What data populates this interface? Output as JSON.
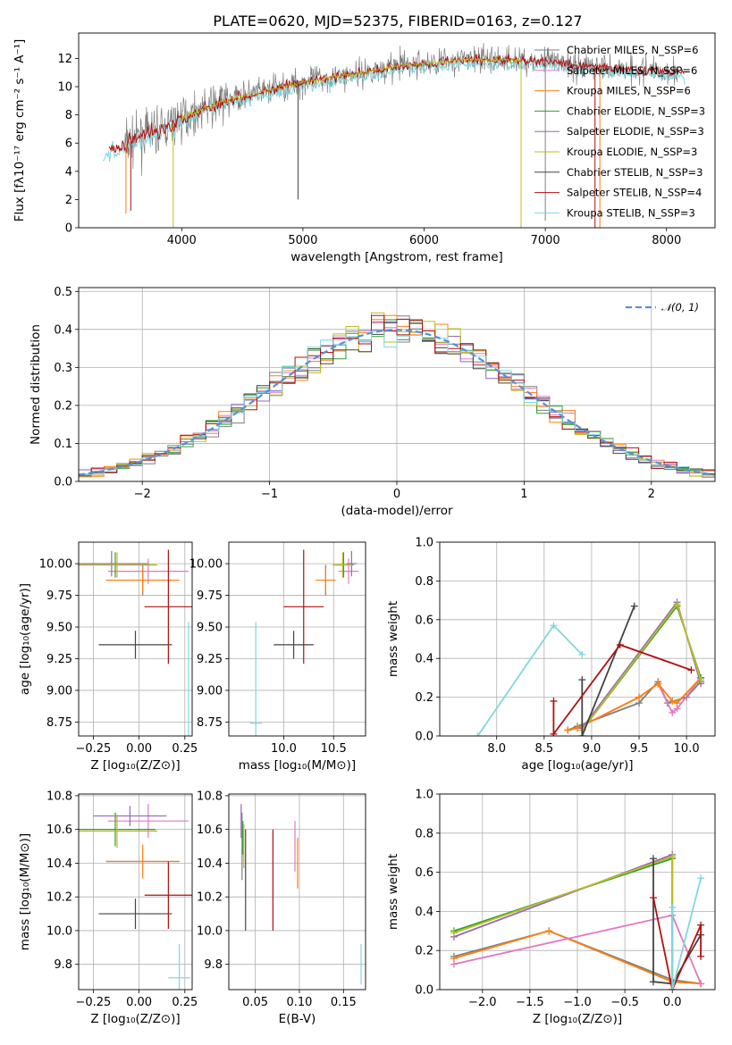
{
  "title": "PLATE=0620, MJD=52375, FIBERID=0163, z=0.127",
  "colors": {
    "chab_miles": "#7f7f7f",
    "salp_miles": "#e377c2",
    "krou_miles": "#ff7f0e",
    "chab_elodie": "#2ca02c",
    "salp_elodie": "#9467bd",
    "krou_elodie": "#bcbd22",
    "chab_stelib": "#444444",
    "salp_stelib": "#b01010",
    "krou_stelib": "#7fd8df",
    "norm": "#5b8fd6"
  },
  "chart_data": [
    {
      "id": "spectrum",
      "type": "line",
      "xlabel": "wavelength [Angstrom, rest frame]",
      "ylabel": "Flux [fλ10⁻¹⁷ erg cm⁻² s⁻¹ A⁻¹]",
      "xlim": [
        3150,
        8400
      ],
      "ylim": [
        0,
        13.8
      ],
      "xticks": [
        4000,
        5000,
        6000,
        7000,
        8000
      ],
      "yticks": [
        0,
        2,
        4,
        6,
        8,
        10,
        12
      ],
      "continuum": {
        "x": [
          3350,
          3500,
          3700,
          3900,
          4000,
          4200,
          4400,
          4600,
          4800,
          5000,
          5200,
          5500,
          5800,
          6000,
          6300,
          6600,
          7000,
          7400,
          7800,
          8150
        ],
        "y": [
          5.3,
          5.8,
          6.6,
          7.2,
          7.8,
          8.5,
          9.1,
          9.5,
          9.9,
          10.3,
          10.6,
          11.0,
          11.5,
          11.6,
          11.9,
          11.9,
          11.8,
          11.4,
          11.2,
          11.0
        ]
      },
      "legend": [
        "Chabrier MILES, N_SSP=6",
        "Salpeter MILES, N_SSP=6",
        "Kroupa MILES, N_SSP=6",
        "Chabrier ELODIE, N_SSP=3",
        "Salpeter ELODIE, N_SSP=3",
        "Kroupa ELODIE, N_SSP=3",
        "Chabrier STELIB, N_SSP=3",
        "Salpeter STELIB, N_SSP=4",
        "Kroupa STELIB, N_SSP=3"
      ],
      "legend_placement": "upper-right",
      "grid": false
    },
    {
      "id": "residuals",
      "type": "line",
      "xlabel": "(data-model)/error",
      "ylabel": "Normed distribution",
      "xlim": [
        -2.5,
        2.5
      ],
      "ylim": [
        0,
        0.51
      ],
      "xticks": [
        -2,
        -1,
        0,
        1,
        2
      ],
      "yticks": [
        0.0,
        0.1,
        0.2,
        0.3,
        0.4,
        0.5
      ],
      "bin_width": 0.1,
      "legend": [
        "𝒩(0, 1)"
      ],
      "grid": true
    },
    {
      "id": "age_vs_Z",
      "type": "scatter",
      "xlabel": "Z [log₁₀(Z/Z⊙)]",
      "ylabel": "age  [log₁₀(age/yr)]",
      "xlim": [
        -0.33,
        0.29
      ],
      "ylim": [
        8.64,
        10.17
      ],
      "xticks": [
        -0.25,
        0.0,
        0.25
      ],
      "yticks": [
        8.75,
        9.0,
        9.25,
        9.5,
        9.75,
        10.0
      ],
      "points": [
        {
          "c": "chab_miles",
          "x": 0.02,
          "y": 9.87,
          "ex": 0.2,
          "ey": 0.12
        },
        {
          "c": "salp_miles",
          "x": 0.05,
          "y": 9.94,
          "ex": 0.22,
          "ey": 0.1
        },
        {
          "c": "krou_miles",
          "x": 0.02,
          "y": 9.87,
          "ex": 0.2,
          "ey": 0.1
        },
        {
          "c": "chab_elodie",
          "x": -0.13,
          "y": 9.99,
          "ex": 0.22,
          "ey": 0.1
        },
        {
          "c": "salp_elodie",
          "x": -0.15,
          "y": 10.0,
          "ex": 0.2,
          "ey": 0.1
        },
        {
          "c": "krou_elodie",
          "x": -0.12,
          "y": 9.99,
          "ex": 0.22,
          "ey": 0.1
        },
        {
          "c": "chab_stelib",
          "x": -0.02,
          "y": 9.36,
          "ex": 0.2,
          "ey": 0.11
        },
        {
          "c": "salp_stelib",
          "x": 0.16,
          "y": 9.66,
          "ex": 0.13,
          "ey": 0.45
        },
        {
          "c": "krou_stelib",
          "x": 0.27,
          "y": 8.74,
          "ex": 0.0,
          "ey": 0.8
        }
      ],
      "grid": true
    },
    {
      "id": "age_vs_mass",
      "type": "scatter",
      "xlabel": "mass [log₁₀(M/M⊙)]",
      "ylabel": "",
      "xlim": [
        9.45,
        10.82
      ],
      "ylim": [
        8.64,
        10.17
      ],
      "xticks": [
        10.0,
        10.5
      ],
      "yticks": [
        8.75,
        9.0,
        9.25,
        9.5,
        9.75,
        10.0
      ],
      "points": [
        {
          "c": "chab_miles",
          "x": 10.42,
          "y": 9.87,
          "ex": 0.0,
          "ey": 0.12
        },
        {
          "c": "salp_miles",
          "x": 10.65,
          "y": 9.94,
          "ex": 0.1,
          "ey": 0.1
        },
        {
          "c": "krou_miles",
          "x": 10.42,
          "y": 9.87,
          "ex": 0.1,
          "ey": 0.1
        },
        {
          "c": "chab_elodie",
          "x": 10.6,
          "y": 9.99,
          "ex": 0.1,
          "ey": 0.1
        },
        {
          "c": "salp_elodie",
          "x": 10.68,
          "y": 10.0,
          "ex": 0.05,
          "ey": 0.1
        },
        {
          "c": "krou_elodie",
          "x": 10.59,
          "y": 9.99,
          "ex": 0.1,
          "ey": 0.1
        },
        {
          "c": "chab_stelib",
          "x": 10.1,
          "y": 9.36,
          "ex": 0.2,
          "ey": 0.11
        },
        {
          "c": "salp_stelib",
          "x": 10.2,
          "y": 9.66,
          "ex": 0.2,
          "ey": 0.45
        },
        {
          "c": "krou_stelib",
          "x": 9.72,
          "y": 8.74,
          "ex": 0.06,
          "ey": 0.8
        }
      ],
      "grid": true
    },
    {
      "id": "weight_vs_age",
      "type": "line",
      "xlabel": "age  [log₁₀(age/yr)]",
      "ylabel": "mass weight",
      "xlim": [
        7.4,
        10.3
      ],
      "ylim": [
        0,
        1.0
      ],
      "xticks": [
        8.0,
        8.5,
        9.0,
        9.5,
        10.0
      ],
      "yticks": [
        0.0,
        0.2,
        0.4,
        0.6,
        0.8,
        1.0
      ],
      "series": [
        {
          "c": "chab_miles",
          "x": [
            8.75,
            8.85,
            9.5,
            9.7,
            9.8,
            10.0,
            10.15
          ],
          "y": [
            0.03,
            0.05,
            0.17,
            0.28,
            0.17,
            0.2,
            0.28
          ]
        },
        {
          "c": "salp_miles",
          "x": [
            8.75,
            8.85,
            9.5,
            9.7,
            9.85,
            9.9,
            10.15
          ],
          "y": [
            0.03,
            0.04,
            0.2,
            0.27,
            0.12,
            0.14,
            0.3
          ]
        },
        {
          "c": "krou_miles",
          "x": [
            8.75,
            8.85,
            9.5,
            9.7,
            9.85,
            9.9,
            10.15
          ],
          "y": [
            0.03,
            0.04,
            0.2,
            0.27,
            0.18,
            0.17,
            0.3
          ]
        },
        {
          "c": "chab_elodie",
          "x": [
            8.9,
            9.9,
            10.15
          ],
          "y": [
            0.03,
            0.67,
            0.3
          ]
        },
        {
          "c": "salp_elodie",
          "x": [
            8.9,
            9.9,
            10.15
          ],
          "y": [
            0.04,
            0.69,
            0.27
          ]
        },
        {
          "c": "krou_elodie",
          "x": [
            8.9,
            9.9,
            10.15
          ],
          "y": [
            0.03,
            0.68,
            0.29
          ]
        },
        {
          "c": "chab_stelib",
          "x": [
            8.9,
            8.9,
            9.45
          ],
          "y": [
            0.29,
            0.0,
            0.67
          ]
        },
        {
          "c": "salp_stelib",
          "x": [
            8.6,
            8.6,
            9.3,
            10.05
          ],
          "y": [
            0.18,
            0.01,
            0.47,
            0.34
          ]
        },
        {
          "c": "krou_stelib",
          "x": [
            7.8,
            8.6,
            8.9
          ],
          "y": [
            0.0,
            0.57,
            0.42
          ]
        }
      ],
      "grid": true
    },
    {
      "id": "mass_vs_Z",
      "type": "scatter",
      "xlabel": "Z [log₁₀(Z/Z⊙)]",
      "ylabel": "mass [log₁₀(M/M⊙)]",
      "xlim": [
        -0.33,
        0.29
      ],
      "ylim": [
        9.65,
        10.81
      ],
      "xticks": [
        -0.25,
        0.0,
        0.25
      ],
      "yticks": [
        9.8,
        10.0,
        10.2,
        10.4,
        10.6,
        10.8
      ],
      "points": [
        {
          "c": "chab_miles",
          "x": 0.02,
          "y": 10.41,
          "ex": 0.2,
          "ey": 0.0
        },
        {
          "c": "salp_miles",
          "x": 0.05,
          "y": 10.65,
          "ex": 0.22,
          "ey": 0.1
        },
        {
          "c": "krou_miles",
          "x": 0.02,
          "y": 10.41,
          "ex": 0.2,
          "ey": 0.1
        },
        {
          "c": "chab_elodie",
          "x": -0.13,
          "y": 10.6,
          "ex": 0.22,
          "ey": 0.1
        },
        {
          "c": "salp_elodie",
          "x": -0.05,
          "y": 10.68,
          "ex": 0.2,
          "ey": 0.06
        },
        {
          "c": "krou_elodie",
          "x": -0.12,
          "y": 10.59,
          "ex": 0.22,
          "ey": 0.1
        },
        {
          "c": "chab_stelib",
          "x": -0.02,
          "y": 10.1,
          "ex": 0.2,
          "ey": 0.09
        },
        {
          "c": "salp_stelib",
          "x": 0.16,
          "y": 10.21,
          "ex": 0.13,
          "ey": 0.2
        },
        {
          "c": "krou_stelib",
          "x": 0.22,
          "y": 9.72,
          "ex": 0.06,
          "ey": 0.2
        }
      ],
      "grid": true
    },
    {
      "id": "mass_vs_ebv",
      "type": "scatter",
      "xlabel": "E(B-V)",
      "ylabel": "",
      "xlim": [
        0.02,
        0.175
      ],
      "ylim": [
        9.65,
        10.81
      ],
      "xticks": [
        0.05,
        0.1,
        0.15
      ],
      "yticks": [
        9.8,
        10.0,
        10.2,
        10.4,
        10.6,
        10.8
      ],
      "points": [
        {
          "c": "chab_miles",
          "x": 0.035,
          "y": 10.5,
          "ex": 0.0,
          "ey": 0.2
        },
        {
          "c": "salp_miles",
          "x": 0.095,
          "y": 10.5,
          "ex": 0.0,
          "ey": 0.15
        },
        {
          "c": "krou_miles",
          "x": 0.098,
          "y": 10.4,
          "ex": 0.0,
          "ey": 0.15
        },
        {
          "c": "chab_elodie",
          "x": 0.036,
          "y": 10.55,
          "ex": 0.0,
          "ey": 0.1
        },
        {
          "c": "salp_elodie",
          "x": 0.034,
          "y": 10.65,
          "ex": 0.0,
          "ey": 0.1
        },
        {
          "c": "krou_elodie",
          "x": 0.037,
          "y": 10.5,
          "ex": 0.0,
          "ey": 0.13
        },
        {
          "c": "chab_stelib",
          "x": 0.039,
          "y": 10.3,
          "ex": 0.0,
          "ey": 0.3
        },
        {
          "c": "salp_stelib",
          "x": 0.07,
          "y": 10.3,
          "ex": 0.0,
          "ey": 0.3
        },
        {
          "c": "krou_stelib",
          "x": 0.17,
          "y": 9.8,
          "ex": 0.0,
          "ey": 0.12
        }
      ],
      "grid": true
    },
    {
      "id": "weight_vs_Z",
      "type": "line",
      "xlabel": "Z [log₁₀(Z/Z⊙)]",
      "ylabel": "mass weight",
      "xlim": [
        -2.45,
        0.45
      ],
      "ylim": [
        0,
        1.0
      ],
      "xticks": [
        -2.0,
        -1.5,
        -1.0,
        -0.5,
        0.0
      ],
      "yticks": [
        0.0,
        0.2,
        0.4,
        0.6,
        0.8,
        1.0
      ],
      "series": [
        {
          "c": "chab_miles",
          "x": [
            -2.3,
            -1.3,
            0.0,
            0.3
          ],
          "y": [
            0.17,
            0.3,
            0.05,
            0.03
          ]
        },
        {
          "c": "krou_miles",
          "x": [
            -2.3,
            -1.3,
            0.0,
            0.3
          ],
          "y": [
            0.16,
            0.3,
            0.04,
            0.03
          ]
        },
        {
          "c": "salp_miles",
          "x": [
            -2.3,
            0.0,
            0.3
          ],
          "y": [
            0.13,
            0.38,
            0.03
          ]
        },
        {
          "c": "chab_elodie",
          "x": [
            -2.3,
            0.0,
            0.0
          ],
          "y": [
            0.3,
            0.67,
            0.0
          ]
        },
        {
          "c": "salp_elodie",
          "x": [
            -2.3,
            0.0,
            0.0
          ],
          "y": [
            0.27,
            0.69,
            0.0
          ]
        },
        {
          "c": "krou_elodie",
          "x": [
            -2.3,
            0.0,
            0.0
          ],
          "y": [
            0.29,
            0.68,
            0.0
          ]
        },
        {
          "c": "chab_stelib",
          "x": [
            -0.2,
            -0.2,
            0.0,
            0.3
          ],
          "y": [
            0.67,
            0.04,
            0.03,
            0.28
          ]
        },
        {
          "c": "salp_stelib",
          "x": [
            -0.2,
            0.0,
            0.3,
            0.3
          ],
          "y": [
            0.47,
            0.0,
            0.33,
            0.17
          ]
        },
        {
          "c": "krou_stelib",
          "x": [
            0.0,
            0.0,
            0.3
          ],
          "y": [
            0.42,
            0.0,
            0.57
          ]
        }
      ],
      "grid": true
    }
  ]
}
